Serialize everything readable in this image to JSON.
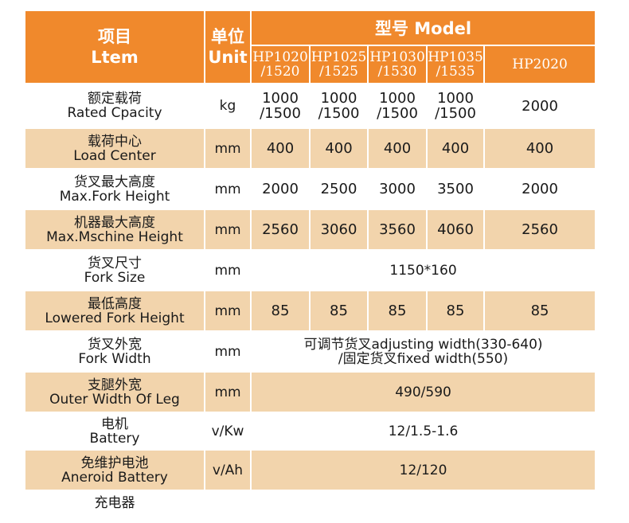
{
  "header": {
    "item_cn": "项目",
    "item_en": "Ltem",
    "unit_cn": "单位",
    "unit_en": "Unit",
    "model_title": "型号 Model",
    "models": [
      {
        "line1": "HP1020",
        "line2": "/1520"
      },
      {
        "line1": "HP1025",
        "line2": "/1525"
      },
      {
        "line1": "HP1030",
        "line2": "/1530"
      },
      {
        "line1": "HP1035",
        "line2": "/1535"
      },
      {
        "line1": "HP2020",
        "line2": ""
      }
    ]
  },
  "rows": [
    {
      "cn": "额定载荷",
      "en": "Rated Cpacity",
      "unit": "kg",
      "values": [
        {
          "a": "1000",
          "b": "/1500"
        },
        {
          "a": "1000",
          "b": "/1500"
        },
        {
          "a": "1000",
          "b": "/1500"
        },
        {
          "a": "1000",
          "b": "/1500"
        },
        {
          "a": "2000",
          "b": ""
        }
      ]
    },
    {
      "cn": "载荷中心",
      "en": "Load Center",
      "unit": "mm",
      "values": [
        "400",
        "400",
        "400",
        "400",
        "400"
      ]
    },
    {
      "cn": "货叉最大高度",
      "en": "Max.Fork Height",
      "unit": "mm",
      "values": [
        "2000",
        "2500",
        "3000",
        "3500",
        "2000"
      ]
    },
    {
      "cn": "机器最大高度",
      "en": "Max.Mschine Height",
      "unit": "mm",
      "values": [
        "2560",
        "3060",
        "3560",
        "4060",
        "2560"
      ]
    },
    {
      "cn": "货叉尺寸",
      "en": "Fork Size",
      "unit": "mm",
      "span": "1150*160"
    },
    {
      "cn": "最低高度",
      "en": "Lowered Fork Height",
      "unit": "mm",
      "values": [
        "85",
        "85",
        "85",
        "85",
        "85"
      ]
    },
    {
      "cn": "货叉外宽",
      "en": "Fork Width",
      "unit": "mm",
      "span": "可调节货叉adjusting width(330-640)",
      "span2": "/固定货叉fixed width(550)"
    },
    {
      "cn": "支腿外宽",
      "en": "Outer Width Of Leg",
      "unit": "mm",
      "span": "490/590"
    },
    {
      "cn": "电机",
      "en": "Battery",
      "unit": "v/Kw",
      "span": "12/1.5-1.6"
    },
    {
      "cn": "免维护电池",
      "en": "Aneroid Battery",
      "unit": "v/Ah",
      "span": "12/120"
    },
    {
      "cn": "充电器",
      "en": "",
      "unit": "",
      "span": ""
    }
  ]
}
